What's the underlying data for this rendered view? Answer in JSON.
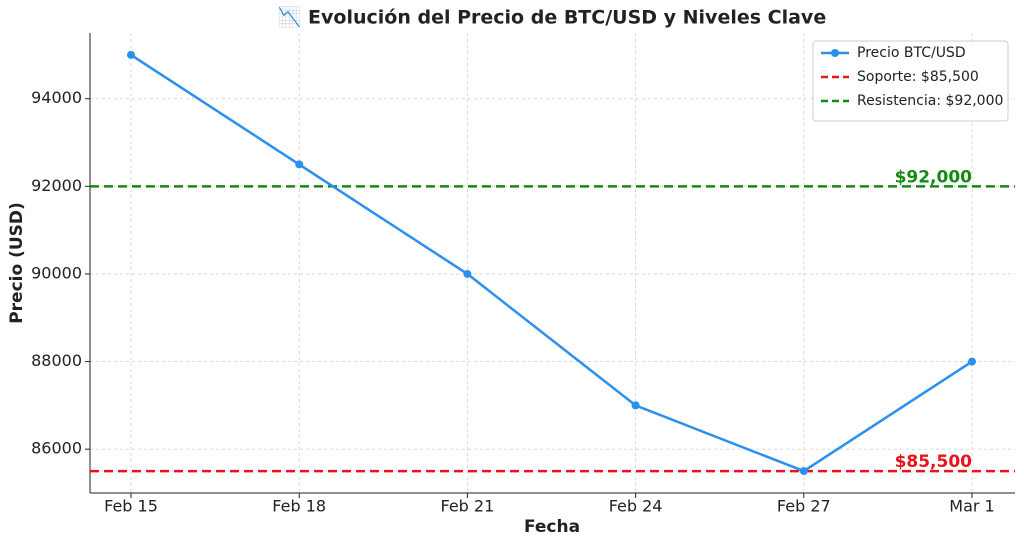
{
  "chart_data": {
    "type": "line",
    "title": "📉 Evolución del Precio de BTC/USD y Niveles Clave",
    "x_label": "Fecha",
    "y_label": "Precio (USD)",
    "categories": [
      "Feb 15",
      "Feb 18",
      "Feb 21",
      "Feb 24",
      "Feb 27",
      "Mar 1"
    ],
    "series": [
      {
        "name": "Precio BTC/USD",
        "color": "#2b8ff0",
        "values": [
          95000,
          92500,
          90000,
          87000,
          85500,
          88000
        ]
      }
    ],
    "reference_lines": [
      {
        "name": "Soporte: $85,500",
        "value": 85500,
        "color": "#e8141a",
        "label": "$85,500"
      },
      {
        "name": "Resistencia: $92,000",
        "value": 92000,
        "color": "#138a13",
        "label": "$92,000"
      }
    ],
    "ylim": [
      85000,
      95500
    ],
    "yticks": [
      86000,
      88000,
      90000,
      92000,
      94000
    ],
    "grid": true,
    "legend": "upper right"
  }
}
